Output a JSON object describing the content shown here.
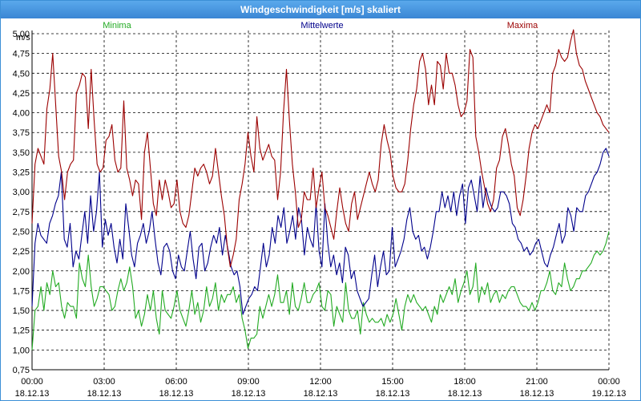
{
  "window": {
    "title": "Windgeschwindigkeit [m/s] skaliert"
  },
  "colors": {
    "min": "#22aa22",
    "avg": "#00008b",
    "max": "#9b0000",
    "grid": "#000000"
  },
  "chart_data": {
    "type": "line",
    "title": "Windgeschwindigkeit [m/s] skaliert",
    "ylabel": "m/s",
    "xlabel": "",
    "ylim": [
      0.75,
      5.0
    ],
    "yticks": [
      "0,75",
      "1,00",
      "1,25",
      "1,50",
      "1,75",
      "2,00",
      "2,25",
      "2,50",
      "2,75",
      "3,00",
      "3,25",
      "3,50",
      "3,75",
      "4,00",
      "4,25",
      "4,50",
      "4,75",
      "5,00"
    ],
    "xticks": [
      {
        "time": "00:00",
        "date": "18.12.13"
      },
      {
        "time": "03:00",
        "date": "18.12.13"
      },
      {
        "time": "06:00",
        "date": "18.12.13"
      },
      {
        "time": "09:00",
        "date": "18.12.13"
      },
      {
        "time": "12:00",
        "date": "18.12.13"
      },
      {
        "time": "15:00",
        "date": "18.12.13"
      },
      {
        "time": "18:00",
        "date": "18.12.13"
      },
      {
        "time": "21:00",
        "date": "18.12.13"
      },
      {
        "time": "00:00",
        "date": "19.12.13"
      }
    ],
    "x_range": [
      "18.12.13 00:00",
      "19.12.13 00:00"
    ],
    "sample_interval_minutes": 10,
    "grid": true,
    "legend": "top",
    "series": [
      {
        "name": "Minima",
        "color": "#22aa22",
        "values": [
          1.0,
          1.5,
          1.55,
          1.8,
          1.5,
          1.85,
          1.7,
          2.0,
          1.8,
          1.85,
          1.55,
          1.4,
          1.6,
          1.55,
          1.55,
          1.4,
          2.1,
          1.9,
          1.8,
          2.2,
          1.8,
          1.55,
          1.65,
          1.8,
          1.8,
          1.75,
          1.7,
          1.5,
          1.55,
          1.75,
          1.9,
          1.75,
          1.85,
          2.05,
          1.8,
          1.4,
          1.5,
          1.3,
          1.45,
          1.7,
          1.5,
          1.75,
          1.4,
          1.2,
          1.75,
          1.5,
          1.45,
          1.4,
          1.55,
          1.75,
          1.5,
          1.4,
          1.3,
          1.5,
          1.75,
          1.45,
          1.6,
          1.35,
          1.5,
          1.8,
          1.55,
          1.65,
          1.85,
          1.5,
          1.7,
          1.6,
          1.7,
          1.7,
          1.8,
          1.6,
          1.7,
          1.4,
          1.25,
          1.02,
          1.15,
          1.15,
          1.2,
          1.55,
          1.4,
          1.55,
          1.7,
          1.55,
          1.7,
          1.95,
          1.6,
          1.6,
          1.75,
          1.45,
          1.85,
          1.55,
          1.5,
          1.65,
          1.85,
          1.6,
          1.6,
          1.7,
          1.75,
          1.85,
          1.55,
          1.5,
          1.75,
          1.7,
          1.3,
          1.55,
          1.45,
          1.35,
          1.85,
          1.5,
          1.4,
          1.4,
          1.5,
          1.2,
          1.6,
          1.45,
          1.35,
          1.4,
          1.35,
          1.35,
          1.4,
          1.3,
          1.45,
          1.35,
          1.45,
          1.65,
          1.45,
          1.25,
          1.55,
          1.7,
          1.6,
          1.7,
          1.6,
          1.55,
          1.5,
          1.55,
          1.45,
          1.35,
          1.55,
          1.45,
          1.7,
          1.6,
          1.7,
          1.8,
          1.7,
          1.9,
          1.6,
          1.75,
          1.85,
          2.0,
          1.7,
          1.8,
          2.1,
          1.6,
          1.8,
          1.7,
          1.85,
          1.6,
          1.7,
          1.75,
          1.6,
          1.7,
          1.65,
          1.75,
          1.8,
          1.8,
          1.7,
          1.6,
          1.55,
          1.55,
          1.5,
          1.6,
          1.5,
          1.6,
          1.75,
          1.75,
          1.85,
          2.0,
          1.75,
          1.7,
          1.85,
          1.8,
          2.1,
          1.9,
          1.75,
          1.8,
          1.9,
          1.9,
          2.0,
          2.0,
          2.05,
          2.1,
          2.2,
          2.25,
          2.2,
          2.25,
          2.35,
          2.5
        ]
      },
      {
        "name": "Mittelwerte",
        "color": "#00008b",
        "values": [
          1.55,
          2.35,
          2.6,
          2.45,
          2.4,
          2.35,
          2.6,
          2.7,
          2.85,
          2.95,
          3.25,
          2.4,
          2.3,
          2.6,
          2.05,
          2.25,
          2.15,
          2.45,
          2.75,
          2.35,
          2.95,
          2.5,
          2.75,
          3.25,
          2.3,
          2.65,
          2.45,
          2.6,
          2.3,
          2.1,
          2.4,
          2.15,
          2.85,
          2.55,
          2.2,
          2.05,
          2.35,
          2.45,
          2.6,
          2.35,
          2.5,
          2.75,
          2.4,
          2.1,
          1.95,
          2.3,
          2.35,
          2.25,
          2.0,
          1.9,
          2.2,
          2.05,
          2.0,
          2.25,
          2.5,
          2.15,
          1.9,
          2.3,
          2.35,
          2.0,
          2.1,
          2.3,
          2.45,
          2.35,
          2.55,
          2.2,
          2.45,
          2.25,
          2.05,
          1.95,
          2.0,
          1.8,
          1.45,
          1.55,
          1.65,
          1.7,
          1.8,
          1.75,
          2.05,
          2.35,
          2.05,
          2.2,
          2.55,
          2.35,
          2.7,
          2.55,
          2.8,
          2.35,
          2.5,
          2.7,
          2.4,
          2.8,
          2.65,
          2.2,
          2.55,
          2.4,
          2.3,
          2.85,
          2.25,
          2.05,
          2.85,
          2.35,
          2.05,
          2.2,
          1.95,
          2.1,
          1.85,
          2.3,
          2.2,
          1.9,
          2.0,
          1.75,
          1.65,
          1.55,
          1.6,
          1.65,
          1.95,
          2.2,
          1.8,
          2.05,
          2.25,
          1.95,
          2.0,
          2.55,
          2.05,
          2.15,
          2.25,
          2.4,
          2.65,
          2.8,
          2.5,
          2.4,
          2.45,
          2.25,
          2.3,
          2.15,
          2.3,
          2.5,
          2.75,
          2.75,
          3.0,
          2.8,
          2.95,
          2.75,
          3.0,
          2.7,
          2.95,
          3.1,
          2.6,
          3.05,
          3.15,
          2.95,
          2.75,
          3.2,
          2.8,
          3.05,
          2.9,
          2.8,
          2.75,
          2.8,
          3.0,
          3.0,
          2.95,
          2.85,
          2.6,
          2.55,
          2.4,
          2.35,
          2.25,
          2.3,
          2.2,
          2.25,
          2.35,
          2.4,
          2.25,
          2.1,
          2.05,
          2.2,
          2.3,
          2.45,
          2.6,
          2.35,
          2.45,
          2.8,
          2.7,
          2.5,
          2.8,
          2.75,
          2.75,
          2.95,
          3.0,
          3.1,
          3.2,
          3.25,
          3.35,
          3.5,
          3.55,
          3.45
        ]
      },
      {
        "name": "Maxima",
        "color": "#9b0000",
        "values": [
          2.6,
          3.35,
          3.55,
          3.45,
          3.35,
          4.05,
          4.3,
          4.75,
          4.1,
          3.45,
          3.25,
          2.9,
          3.25,
          3.35,
          3.4,
          4.25,
          4.35,
          4.5,
          4.45,
          3.8,
          4.55,
          3.9,
          3.35,
          3.25,
          3.3,
          3.65,
          3.7,
          3.85,
          3.4,
          3.25,
          3.3,
          4.15,
          3.3,
          3.15,
          2.95,
          3.15,
          3.1,
          2.65,
          3.5,
          3.75,
          3.3,
          2.85,
          2.7,
          3.15,
          2.9,
          3.15,
          3.0,
          2.8,
          2.85,
          3.15,
          2.75,
          2.6,
          2.55,
          2.7,
          3.0,
          3.3,
          3.2,
          3.3,
          3.35,
          3.25,
          3.1,
          3.2,
          3.55,
          3.25,
          2.95,
          2.7,
          2.3,
          2.05,
          2.2,
          2.4,
          2.9,
          3.1,
          3.35,
          3.75,
          3.45,
          3.25,
          3.95,
          3.55,
          3.4,
          3.5,
          3.6,
          3.45,
          3.4,
          2.9,
          3.25,
          4.0,
          4.55,
          3.9,
          3.35,
          3.0,
          2.55,
          2.65,
          3.0,
          2.9,
          2.9,
          3.3,
          2.8,
          3.05,
          3.25,
          2.8,
          2.7,
          2.55,
          2.4,
          2.75,
          3.05,
          2.8,
          2.6,
          2.5,
          2.85,
          3.0,
          2.65,
          2.8,
          2.95,
          3.1,
          3.25,
          3.1,
          3.0,
          3.15,
          3.6,
          3.85,
          3.65,
          3.5,
          3.2,
          3.05,
          3.0,
          3.0,
          3.1,
          3.4,
          3.8,
          4.1,
          4.3,
          4.65,
          4.75,
          4.55,
          4.1,
          4.35,
          4.1,
          4.65,
          4.6,
          4.3,
          4.75,
          4.5,
          4.5,
          4.35,
          4.1,
          3.95,
          4.0,
          4.15,
          4.8,
          4.7,
          3.7,
          3.5,
          3.25,
          3.05,
          2.85,
          2.75,
          2.9,
          3.3,
          3.4,
          3.7,
          3.8,
          3.6,
          3.35,
          3.2,
          2.8,
          2.7,
          2.9,
          3.2,
          3.55,
          3.75,
          3.85,
          3.8,
          3.9,
          4.0,
          4.1,
          4.0,
          4.5,
          4.6,
          4.8,
          4.7,
          4.65,
          4.7,
          4.9,
          5.05,
          4.75,
          4.6,
          4.55,
          4.4,
          4.3,
          4.2,
          4.1,
          4.0,
          3.95,
          3.85,
          3.8,
          3.75
        ]
      }
    ]
  },
  "legend": {
    "min_label": "Minima",
    "avg_label": "Mittelwerte",
    "max_label": "Maxima"
  }
}
